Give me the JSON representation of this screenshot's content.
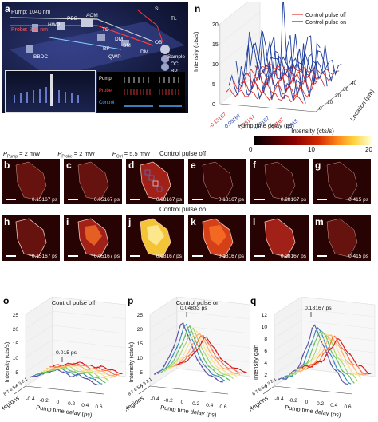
{
  "panel_a": {
    "label": "a",
    "pump_wavelength": "Pump: 1040 nm",
    "probe_wavelength": "Probe: 800 nm",
    "components": [
      "HWP",
      "PBS",
      "AOM",
      "TD",
      "SL",
      "TL",
      "OB",
      "BBDC",
      "BF",
      "DM",
      "SM",
      "QWP",
      "DM",
      "Sample",
      "OC",
      "BP",
      "PD"
    ],
    "pulse_legend": [
      "Pump",
      "Probe",
      "Control"
    ]
  },
  "panel_n": {
    "label": "n",
    "legend": [
      "Control pulse off",
      "Control pulse on"
    ],
    "colors": {
      "off": "#e0302a",
      "on": "#1f3f9f"
    }
  },
  "chart_data": [
    {
      "type": "line",
      "panel": "n",
      "zlabel": "Intensity (cts/s)",
      "xlabel": "Pump time delay (ps)",
      "ylabel": "Location (μm)",
      "x_ticks": [
        "-0.15167",
        "-0.05167",
        "0.08167",
        "0.18167",
        "0.28167",
        "0.415"
      ],
      "z_ticks": [
        "0",
        "5",
        "10",
        "15",
        "20"
      ],
      "y_ticks": [
        "0",
        "10",
        "20",
        "30",
        "40"
      ],
      "series": [
        {
          "name": "Control pulse off",
          "values": [
            3,
            4,
            5,
            4,
            3,
            2
          ]
        },
        {
          "name": "Control pulse on",
          "values": [
            8,
            12,
            22,
            14,
            8,
            5
          ]
        }
      ]
    },
    {
      "type": "line",
      "panel": "o",
      "title": "Control pulse off",
      "zlabel": "Intensity (cts/s)",
      "xlabel": "Pump time delay (ps)",
      "ylabel": "Regions",
      "peak_annotation": "0.015 ps",
      "z_ticks": [
        "0",
        "5",
        "10",
        "15",
        "20",
        "25"
      ],
      "x_ticks": [
        "-0.4",
        "-0.2",
        "0",
        "0.2",
        "0.4",
        "0.6"
      ],
      "y_ticks": [
        "8",
        "7",
        "6",
        "5",
        "4",
        "3",
        "2",
        "1"
      ],
      "x": [
        -0.4,
        -0.3,
        -0.2,
        -0.1,
        0,
        0.1,
        0.2,
        0.3,
        0.4,
        0.5,
        0.6
      ],
      "series_values": [
        3,
        4,
        5,
        6,
        7,
        6,
        5,
        6,
        5,
        4,
        3
      ]
    },
    {
      "type": "line",
      "panel": "p",
      "title": "Control pulse on",
      "zlabel": "Intensity (cts/s)",
      "xlabel": "Pump time delay (ps)",
      "ylabel": "Regions",
      "peak_annotation": "0.04833 ps",
      "z_ticks": [
        "0",
        "5",
        "10",
        "15",
        "20",
        "25"
      ],
      "x_ticks": [
        "-0.4",
        "-0.2",
        "0",
        "0.2",
        "0.4",
        "0.6"
      ],
      "y_ticks": [
        "8",
        "7",
        "6",
        "5",
        "4",
        "3",
        "2",
        "1"
      ],
      "x": [
        -0.4,
        -0.3,
        -0.2,
        -0.1,
        0,
        0.1,
        0.2,
        0.3,
        0.4,
        0.5,
        0.6
      ],
      "series_values": [
        4,
        6,
        10,
        16,
        24,
        18,
        12,
        8,
        6,
        5,
        4
      ]
    },
    {
      "type": "line",
      "panel": "q",
      "zlabel": "Intensity gain",
      "xlabel": "Pump time delay (ps)",
      "ylabel": "Regions",
      "peak_annotation": "0.18167 ps",
      "z_ticks": [
        "0",
        "2",
        "4",
        "6",
        "8",
        "10",
        "12"
      ],
      "x_ticks": [
        "-0.4",
        "-0.2",
        "0",
        "0.2",
        "0.4",
        "0.6"
      ],
      "y_ticks": [
        "8",
        "7",
        "6",
        "5",
        "4",
        "3",
        "2",
        "1"
      ],
      "x": [
        -0.4,
        -0.3,
        -0.2,
        -0.1,
        0,
        0.1,
        0.2,
        0.3,
        0.4,
        0.5,
        0.6
      ],
      "series_values": [
        1,
        1.5,
        2.5,
        4,
        7,
        11,
        9,
        6,
        4,
        2.5,
        1.5
      ]
    }
  ],
  "colorbar": {
    "title": "Intensity (cts/s)",
    "min": "0",
    "mid": "10",
    "max": "20"
  },
  "params": {
    "pump": "P",
    "pump_sub": "Pump",
    "pump_val": " = 2 mW",
    "probe": "P",
    "probe_sub": "Probe",
    "probe_val": " = 2 mW",
    "ctrl": "P",
    "ctrl_sub": "Ctrl",
    "ctrl_val": " = 5.5 mW"
  },
  "row_off_title": "Control pulse off",
  "row_on_title": "Control pulse on",
  "micro_row_off": [
    {
      "label": "b",
      "delay": "−0.15167 ps"
    },
    {
      "label": "c",
      "delay": "−0.05167 ps"
    },
    {
      "label": "d",
      "delay": "0.08167 ps"
    },
    {
      "label": "e",
      "delay": "0.18167 ps"
    },
    {
      "label": "f",
      "delay": "0.28167 ps"
    },
    {
      "label": "g",
      "delay": "0.415 ps"
    }
  ],
  "micro_row_on": [
    {
      "label": "h",
      "delay": "−0.15167 ps"
    },
    {
      "label": "i",
      "delay": "−0.05167 ps"
    },
    {
      "label": "j",
      "delay": "0.08167 ps"
    },
    {
      "label": "k",
      "delay": "0.18167 ps"
    },
    {
      "label": "l",
      "delay": "0.28167 ps"
    },
    {
      "label": "m",
      "delay": "0.415 ps"
    }
  ],
  "bottom_labels": {
    "o": "o",
    "p": "p",
    "q": "q"
  }
}
